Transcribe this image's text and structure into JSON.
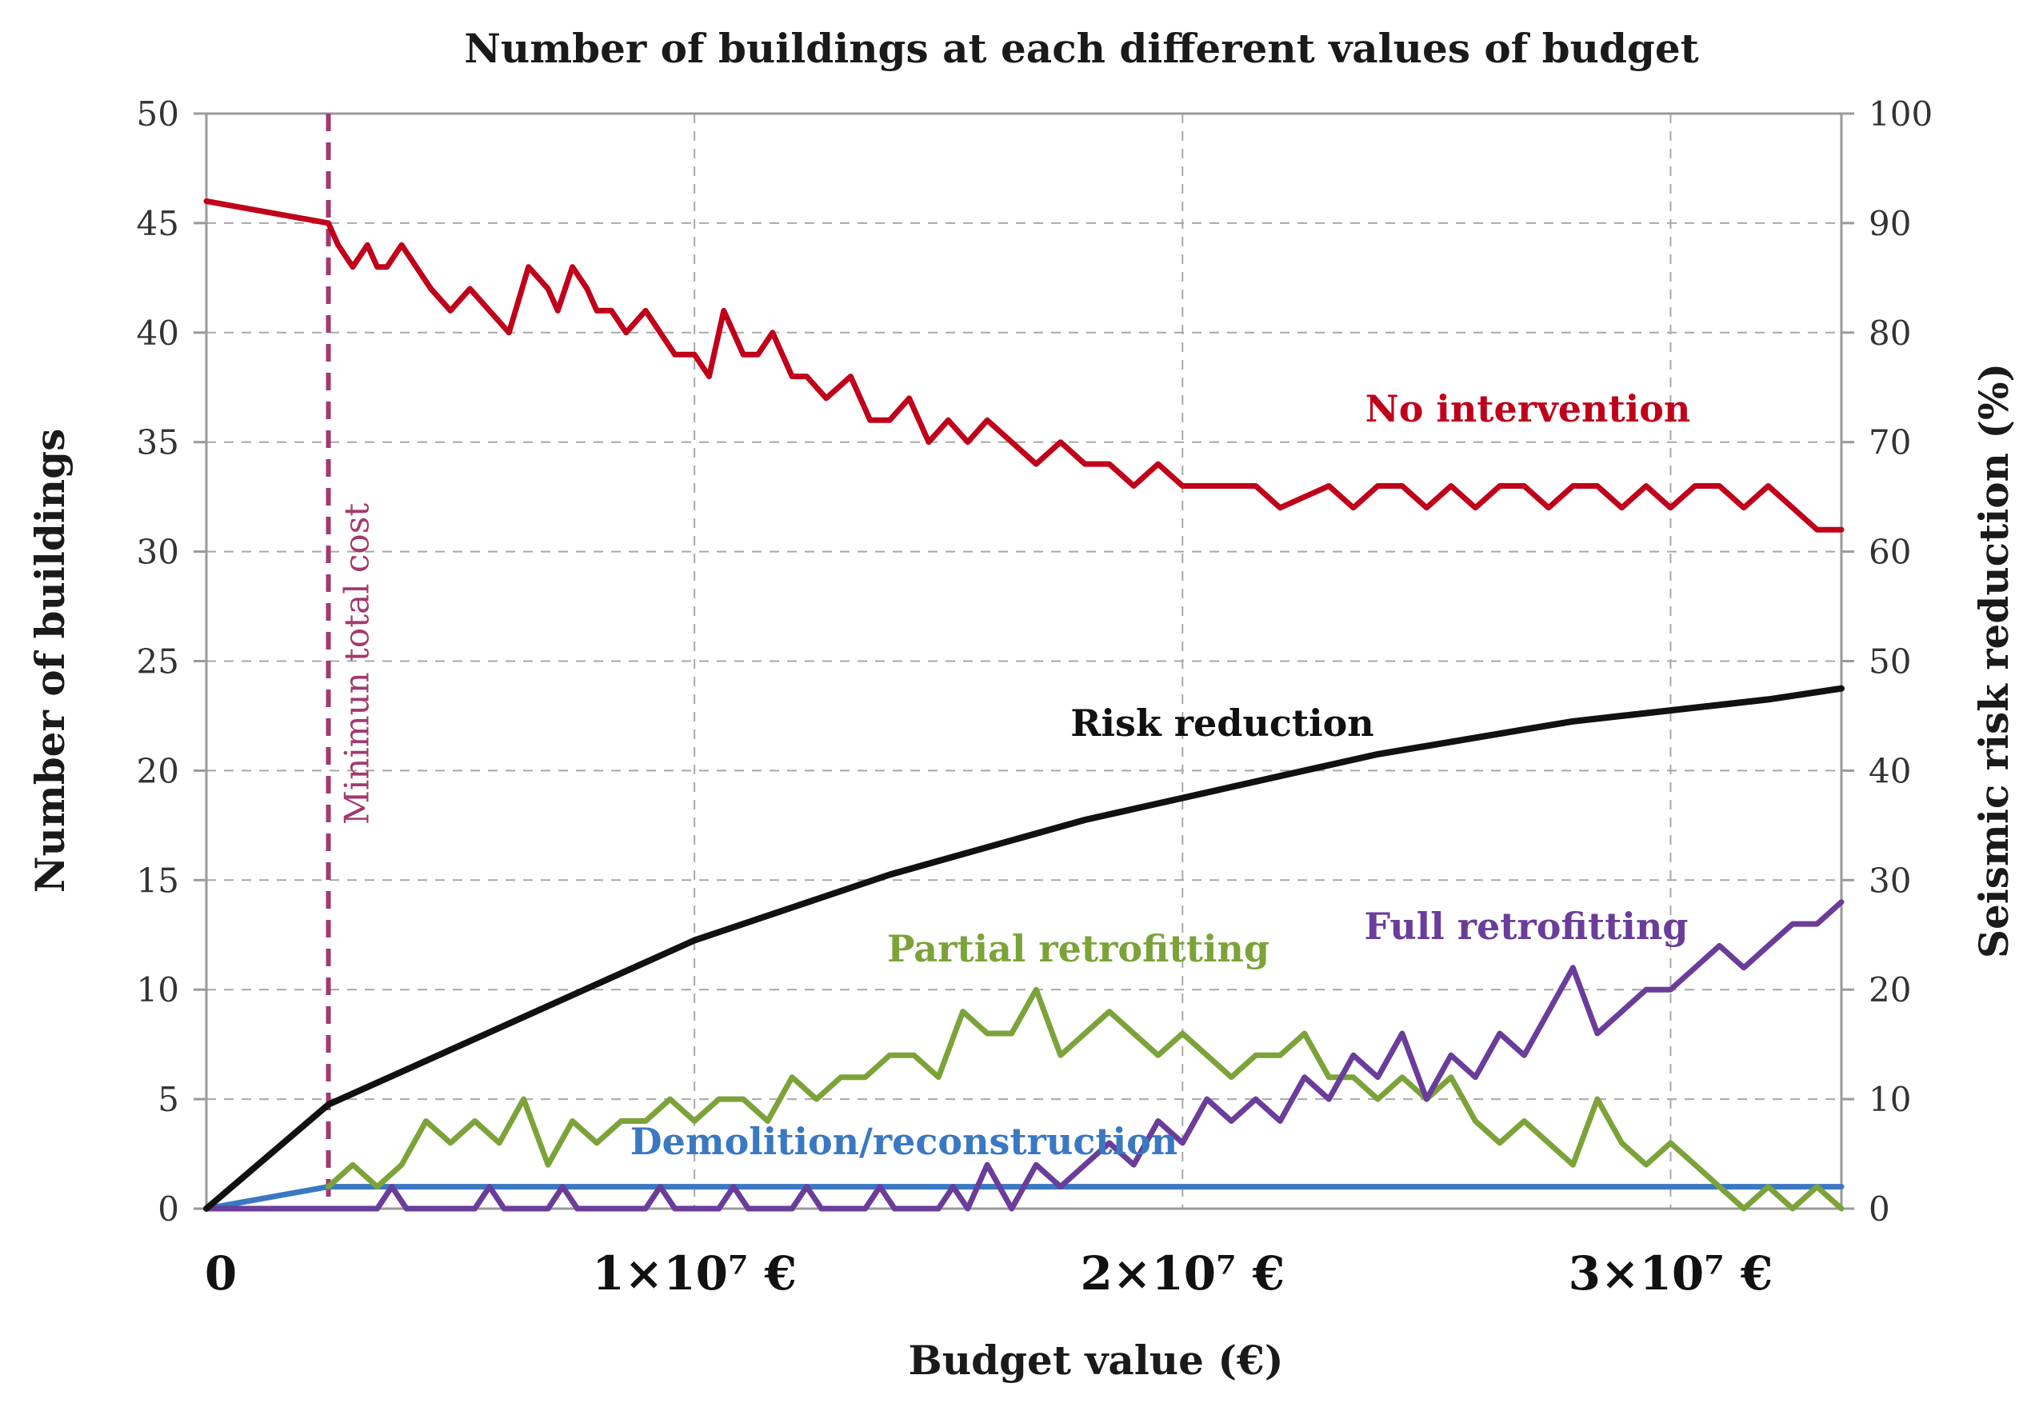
{
  "chart_data": {
    "type": "line",
    "title": "Number of buildings at each different values of budget",
    "xlabel": "Budget value (€)",
    "ylabel": "Number of buildings",
    "y2label": "Seismic risk reduction (%)",
    "xlim": [
      0,
      33500000
    ],
    "ylim": [
      0,
      50
    ],
    "y2lim": [
      0,
      100
    ],
    "xticks": [
      0,
      10000000,
      20000000,
      30000000
    ],
    "xtick_labels": [
      "0",
      "1×10⁷ €",
      "2×10⁷ €",
      "3×10⁷ €"
    ],
    "yticks": [
      0,
      5,
      10,
      15,
      20,
      25,
      30,
      35,
      40,
      45,
      50
    ],
    "y2ticks": [
      0,
      10,
      20,
      30,
      40,
      50,
      60,
      70,
      80,
      90,
      100
    ],
    "grid": true,
    "annotation": {
      "label": "Minimun total cost",
      "x": 2500000
    },
    "series": [
      {
        "name": "No intervention",
        "color": "#c0001a",
        "axis": "left",
        "x": [
          0,
          2500000,
          2700000,
          3000000,
          3300000,
          3500000,
          3700000,
          4000000,
          4300000,
          4600000,
          5000000,
          5400000,
          5800000,
          6200000,
          6600000,
          7000000,
          7200000,
          7500000,
          7800000,
          8000000,
          8300000,
          8600000,
          9000000,
          9300000,
          9600000,
          10000000,
          10300000,
          10600000,
          11000000,
          11300000,
          11600000,
          12000000,
          12300000,
          12700000,
          13200000,
          13600000,
          14000000,
          14400000,
          14800000,
          15200000,
          15600000,
          16000000,
          16500000,
          17000000,
          17500000,
          18000000,
          18500000,
          19000000,
          19500000,
          20000000,
          21000000,
          21500000,
          22000000,
          23000000,
          23500000,
          24000000,
          24500000,
          25000000,
          25500000,
          26000000,
          26500000,
          27000000,
          27500000,
          28000000,
          28500000,
          29000000,
          29500000,
          30000000,
          30500000,
          31000000,
          31500000,
          32000000,
          32500000,
          33000000,
          33500000
        ],
        "values": [
          46,
          45,
          44,
          43,
          44,
          43,
          43,
          44,
          43,
          42,
          41,
          42,
          41,
          40,
          43,
          42,
          41,
          43,
          42,
          41,
          41,
          40,
          41,
          40,
          39,
          39,
          38,
          41,
          39,
          39,
          40,
          38,
          38,
          37,
          38,
          36,
          36,
          37,
          35,
          36,
          35,
          36,
          35,
          34,
          35,
          34,
          34,
          33,
          34,
          33,
          33,
          33,
          32,
          33,
          32,
          33,
          33,
          32,
          33,
          32,
          33,
          33,
          32,
          33,
          33,
          32,
          33,
          32,
          33,
          33,
          32,
          33,
          32,
          31,
          31
        ]
      },
      {
        "name": "Risk reduction",
        "color": "#111111",
        "axis": "right",
        "x": [
          0,
          2500000,
          4000000,
          6000000,
          8000000,
          10000000,
          12000000,
          14000000,
          16000000,
          18000000,
          20000000,
          22000000,
          24000000,
          26000000,
          28000000,
          30000000,
          32000000,
          33500000
        ],
        "values": [
          0,
          9.5,
          12.5,
          16.5,
          20.5,
          24.5,
          27.5,
          30.5,
          33,
          35.5,
          37.5,
          39.5,
          41.5,
          43,
          44.5,
          45.5,
          46.5,
          47.5
        ]
      },
      {
        "name": "Partial retrofitting",
        "color": "#7ca33a",
        "axis": "left",
        "x": [
          2500000,
          3000000,
          3500000,
          4000000,
          4500000,
          5000000,
          5500000,
          6000000,
          6500000,
          7000000,
          7500000,
          8000000,
          8500000,
          9000000,
          9500000,
          10000000,
          10500000,
          11000000,
          11500000,
          12000000,
          12500000,
          13000000,
          13500000,
          14000000,
          14500000,
          15000000,
          15500000,
          16000000,
          16500000,
          17000000,
          17500000,
          18000000,
          18500000,
          19000000,
          19500000,
          20000000,
          20500000,
          21000000,
          21500000,
          22000000,
          22500000,
          23000000,
          23500000,
          24000000,
          24500000,
          25000000,
          25500000,
          26000000,
          26500000,
          27000000,
          27500000,
          28000000,
          28500000,
          29000000,
          29500000,
          30000000,
          30500000,
          31000000,
          31500000,
          32000000,
          32500000,
          33000000,
          33500000
        ],
        "values": [
          1,
          2,
          1,
          2,
          4,
          3,
          4,
          3,
          5,
          2,
          4,
          3,
          4,
          4,
          5,
          4,
          5,
          5,
          4,
          6,
          5,
          6,
          6,
          7,
          7,
          6,
          9,
          8,
          8,
          10,
          7,
          8,
          9,
          8,
          7,
          8,
          7,
          6,
          7,
          7,
          8,
          6,
          6,
          5,
          6,
          5,
          6,
          4,
          3,
          4,
          3,
          2,
          5,
          3,
          2,
          3,
          2,
          1,
          0,
          1,
          0,
          1,
          0
        ]
      },
      {
        "name": "Full retrofitting",
        "color": "#6a3d9a",
        "axis": "left",
        "x": [
          0,
          3500000,
          3800000,
          4100000,
          5500000,
          5800000,
          6100000,
          7000000,
          7300000,
          7600000,
          9000000,
          9300000,
          9600000,
          10500000,
          10800000,
          11100000,
          12000000,
          12300000,
          12600000,
          13500000,
          13800000,
          14100000,
          15000000,
          15300000,
          15600000,
          16000000,
          16500000,
          17000000,
          17500000,
          18000000,
          18500000,
          19000000,
          19500000,
          20000000,
          20500000,
          21000000,
          21500000,
          22000000,
          22500000,
          23000000,
          23500000,
          24000000,
          24500000,
          25000000,
          25500000,
          26000000,
          26500000,
          27000000,
          27500000,
          28000000,
          28500000,
          29000000,
          29500000,
          30000000,
          30500000,
          31000000,
          31500000,
          32000000,
          32500000,
          33000000,
          33500000
        ],
        "values": [
          0,
          0,
          1,
          0,
          0,
          1,
          0,
          0,
          1,
          0,
          0,
          1,
          0,
          0,
          1,
          0,
          0,
          1,
          0,
          0,
          1,
          0,
          0,
          1,
          0,
          2,
          0,
          2,
          1,
          2,
          3,
          2,
          4,
          3,
          5,
          4,
          5,
          4,
          6,
          5,
          7,
          6,
          8,
          5,
          7,
          6,
          8,
          7,
          9,
          11,
          8,
          9,
          10,
          10,
          11,
          12,
          11,
          12,
          13,
          13,
          14
        ]
      },
      {
        "name": "Demolition/reconstruction",
        "color": "#3a78c2",
        "axis": "left",
        "x": [
          0,
          2500000,
          33500000
        ],
        "values": [
          0,
          1,
          1
        ]
      }
    ]
  }
}
